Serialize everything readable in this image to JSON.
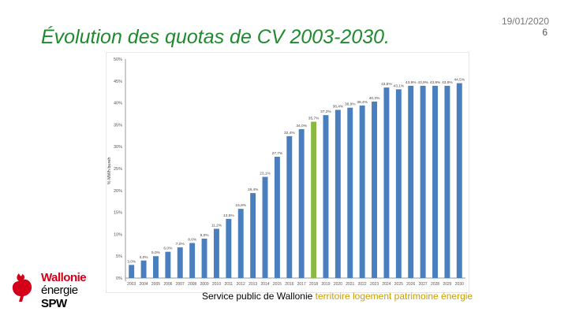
{
  "header": {
    "title": "Évolution des quotas de CV 2003-2030.",
    "date": "19/01/2020",
    "page_number": "6"
  },
  "logo": {
    "line1": "Wallonie",
    "line2": "énergie",
    "line3": "SPW"
  },
  "footer": {
    "org": "Service public de Wallonie",
    "tags": "territoire logement patrimoine énergie"
  },
  "colors": {
    "bar": "#4a7fbf",
    "highlight_bar": "#8cb944",
    "title": "#1f8a2e",
    "brand_red": "#d4001a",
    "footer_accent": "#c8a000"
  },
  "chart_data": {
    "type": "bar",
    "title": "",
    "xlabel": "",
    "ylabel": "% MWh bureh",
    "ylim": [
      0,
      50
    ],
    "grid": false,
    "yticks": [
      "0%",
      "5%",
      "10%",
      "15%",
      "20%",
      "25%",
      "30%",
      "35%",
      "40%",
      "45%",
      "50%"
    ],
    "categories": [
      "2003",
      "2004",
      "2005",
      "2006",
      "2007",
      "2008",
      "2009",
      "2010",
      "2011",
      "2012",
      "2013",
      "2014",
      "2015",
      "2016",
      "2017",
      "2018",
      "2019",
      "2020",
      "2021",
      "2022",
      "2023",
      "2024",
      "2025",
      "2026",
      "2027",
      "2028",
      "2029",
      "2030"
    ],
    "values": [
      3.0,
      4.0,
      5.0,
      6.0,
      7.0,
      8.0,
      9.0,
      11.25,
      13.5,
      15.8,
      19.4,
      23.1,
      27.7,
      32.4,
      34.0,
      35.7,
      37.2,
      38.4,
      38.9,
      39.4,
      40.3,
      43.5,
      43.1,
      43.9,
      43.9,
      43.9,
      43.9,
      44.5
    ],
    "highlight_index": 15,
    "data_labels": [
      "3,0%",
      "4,0%",
      "5,0%",
      "6,0%",
      "7,0%",
      "8,0%",
      "9,0%",
      "11,2%",
      "13,5%",
      "15,8%",
      "19,4%",
      "23,1%",
      "27,7%",
      "32,4%",
      "34,0%",
      "35,7%",
      "37,2%",
      "38,4%",
      "38,9%",
      "39,4%",
      "40,3%",
      "43,5%",
      "43,1%",
      "43,9%",
      "43,9%",
      "43,9%",
      "43,9%",
      "44,5%"
    ]
  }
}
